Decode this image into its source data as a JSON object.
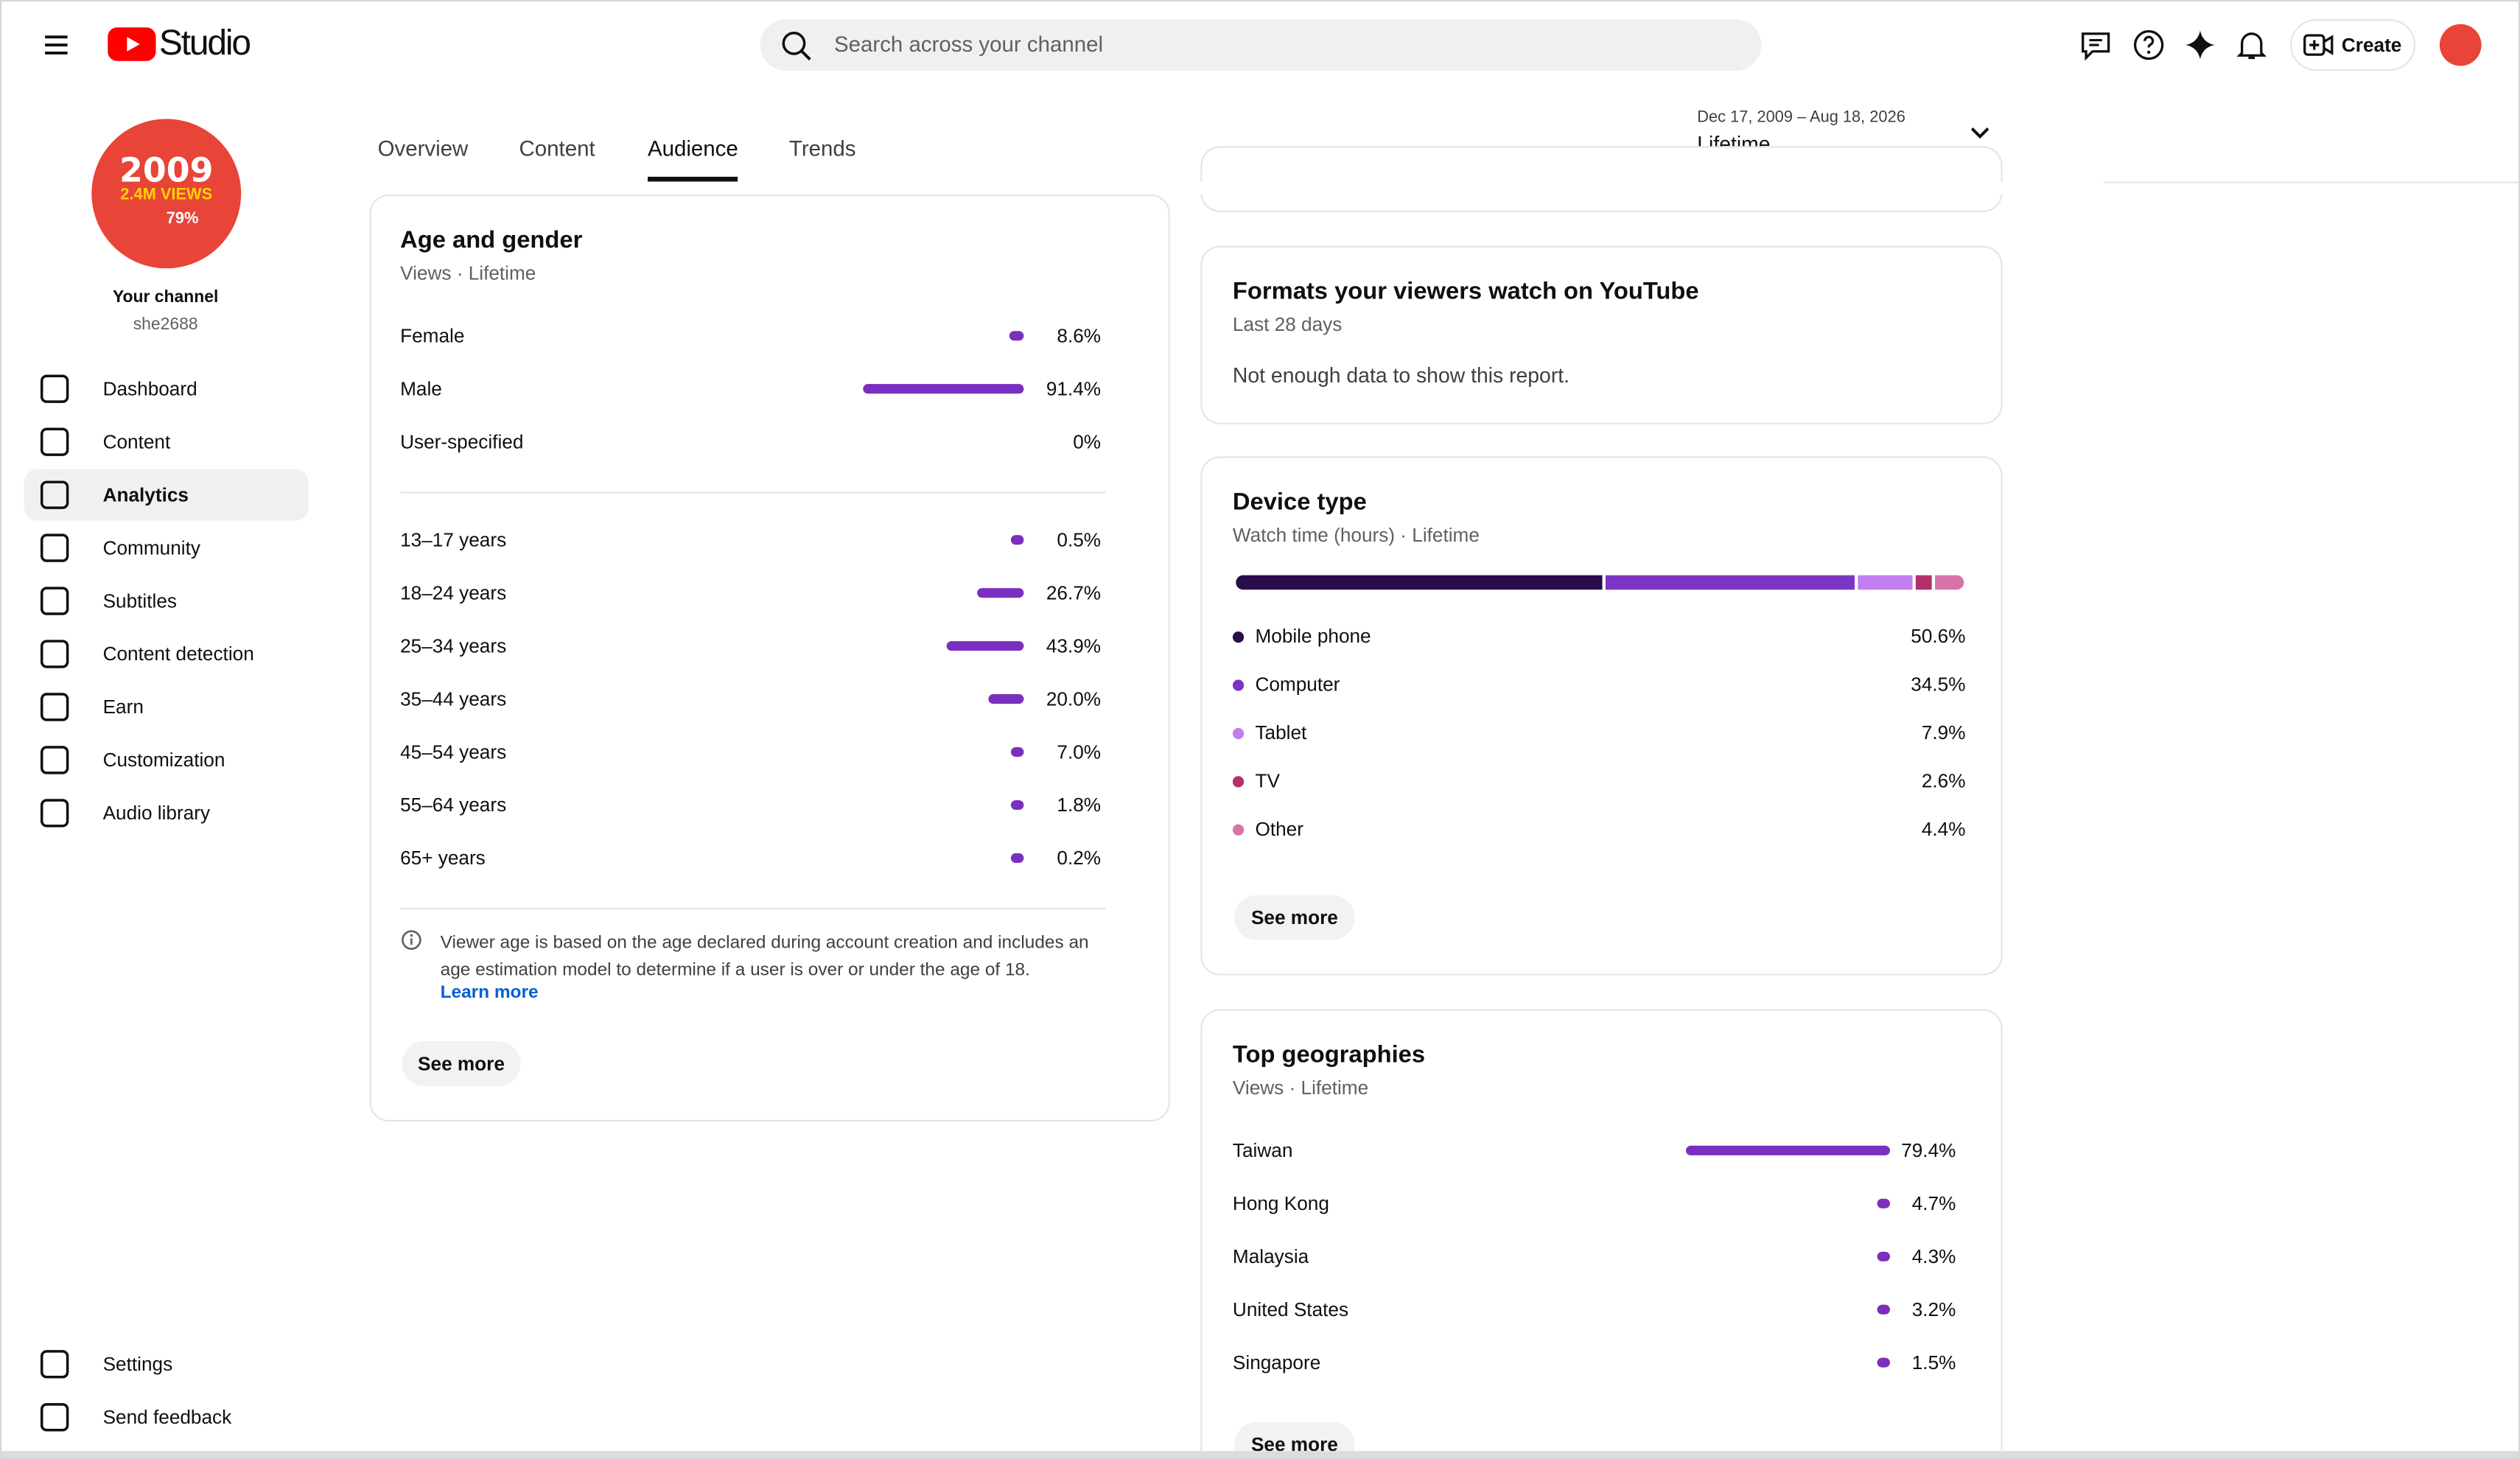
{
  "header": {
    "app_name": "Studio",
    "search_placeholder": "Search across your channel",
    "create_label": "Create"
  },
  "channel": {
    "avatar_year": "2009",
    "avatar_views": "2.4M VIEWS",
    "avatar_share": "79%",
    "label": "Your channel",
    "handle": "she2688"
  },
  "nav": [
    {
      "label": "Dashboard"
    },
    {
      "label": "Content"
    },
    {
      "label": "Analytics",
      "active": true
    },
    {
      "label": "Community"
    },
    {
      "label": "Subtitles"
    },
    {
      "label": "Content detection"
    },
    {
      "label": "Earn"
    },
    {
      "label": "Customization"
    },
    {
      "label": "Audio library"
    }
  ],
  "footer_nav": [
    "Settings",
    "Send feedback"
  ],
  "tabs": {
    "items": [
      "Overview",
      "Content",
      "Audience",
      "Trends"
    ],
    "active": 2
  },
  "date_range": {
    "range": "Dec 17, 2009 – Aug 18, 2026",
    "label": "Lifetime"
  },
  "age_gender": {
    "title": "Age and gender",
    "subtitle": "Views · Lifetime",
    "color": "#7b2fbe",
    "gender": [
      {
        "label": "Female",
        "value": 8.6,
        "value_label": "8.6%"
      },
      {
        "label": "Male",
        "value": 91.4,
        "value_label": "91.4%"
      },
      {
        "label": "User-specified",
        "value": 0,
        "value_label": "0%"
      }
    ],
    "age": [
      {
        "label": "13–17 years",
        "value": 0.5,
        "value_label": "0.5%"
      },
      {
        "label": "18–24 years",
        "value": 26.7,
        "value_label": "26.7%"
      },
      {
        "label": "25–34 years",
        "value": 43.9,
        "value_label": "43.9%"
      },
      {
        "label": "35–44 years",
        "value": 20.0,
        "value_label": "20.0%"
      },
      {
        "label": "45–54 years",
        "value": 7.0,
        "value_label": "7.0%"
      },
      {
        "label": "55–64 years",
        "value": 1.8,
        "value_label": "1.8%"
      },
      {
        "label": "65+ years",
        "value": 0.2,
        "value_label": "0.2%"
      }
    ],
    "note": "Viewer age is based on the age declared during account creation and includes an age estimation model to determine if a user is over or under the age of 18.",
    "learn_more": "Learn more",
    "see_more": "See more"
  },
  "formats": {
    "title": "Formats your viewers watch on YouTube",
    "subtitle": "Last 28 days",
    "message": "Not enough data to show this report."
  },
  "device": {
    "title": "Device type",
    "subtitle": "Watch time (hours) · Lifetime",
    "segments": [
      {
        "label": "Mobile phone",
        "value": 50.6,
        "value_label": "50.6%",
        "color": "#2a0b4b"
      },
      {
        "label": "Computer",
        "value": 34.5,
        "value_label": "34.5%",
        "color": "#7b35c4"
      },
      {
        "label": "Tablet",
        "value": 7.9,
        "value_label": "7.9%",
        "color": "#c17ff0"
      },
      {
        "label": "TV",
        "value": 2.6,
        "value_label": "2.6%",
        "color": "#b3306d"
      },
      {
        "label": "Other",
        "value": 4.4,
        "value_label": "4.4%",
        "color": "#d873a9"
      }
    ],
    "see_more": "See more"
  },
  "geographies": {
    "title": "Top geographies",
    "subtitle": "Views · Lifetime",
    "color": "#7b2fbe",
    "rows": [
      {
        "label": "Taiwan",
        "value": 79.4,
        "value_label": "79.4%"
      },
      {
        "label": "Hong Kong",
        "value": 4.7,
        "value_label": "4.7%"
      },
      {
        "label": "Malaysia",
        "value": 4.3,
        "value_label": "4.3%"
      },
      {
        "label": "United States",
        "value": 3.2,
        "value_label": "3.2%"
      },
      {
        "label": "Singapore",
        "value": 1.5,
        "value_label": "1.5%"
      }
    ],
    "see_more": "See more"
  }
}
